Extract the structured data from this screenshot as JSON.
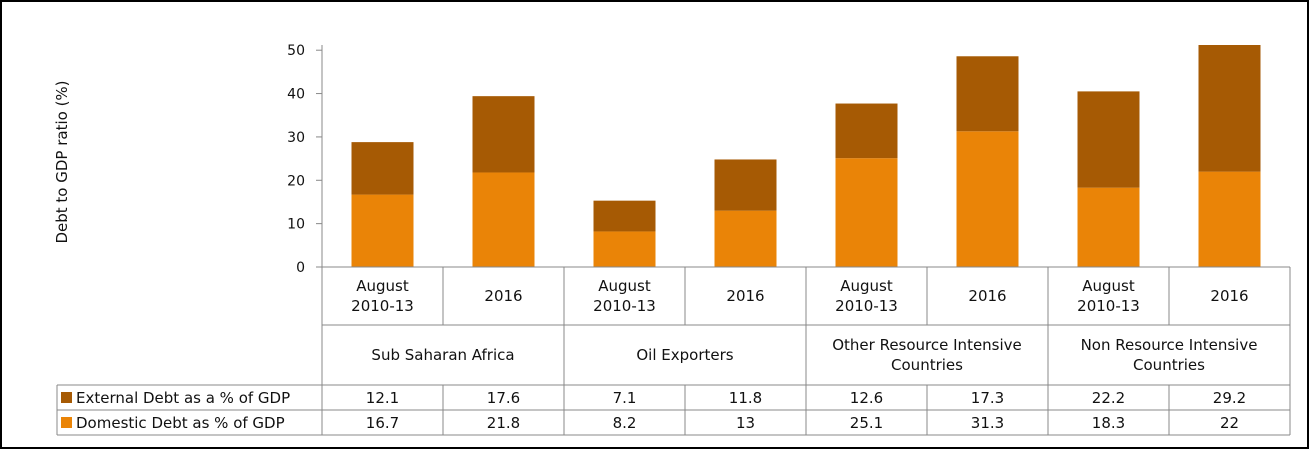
{
  "chart_data": {
    "type": "stacked-bar",
    "y_label": "Debt to GDP ratio (%)",
    "categories": [
      "August 2010-13",
      "2016",
      "August 2010-13",
      "2016",
      "August 2010-13",
      "2016",
      "August 2010-13",
      "2016"
    ],
    "groups": [
      "Sub Saharan Africa",
      "Oil Exporters",
      "Other Resource Intensive Countries",
      "Non Resource Intensive Countries"
    ],
    "series": [
      {
        "name": "External Debt as a % of GDP",
        "color": "#a65a04",
        "values": [
          12.1,
          17.6,
          7.1,
          11.8,
          12.6,
          17.3,
          22.2,
          29.2
        ]
      },
      {
        "name": "Domestic Debt as % of GDP",
        "color": "#ea8407",
        "values": [
          16.7,
          21.8,
          8.2,
          13,
          25.1,
          31.3,
          18.3,
          22
        ]
      }
    ],
    "ylim": [
      0,
      51.2
    ],
    "yticks": [
      0,
      10,
      20,
      30,
      40,
      50
    ]
  }
}
